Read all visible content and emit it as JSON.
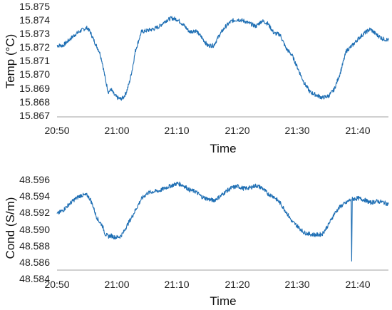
{
  "chart_data": [
    {
      "type": "line",
      "xlabel": "Time",
      "ylabel": "Temp (°C)",
      "x_ticks": [
        "20:50",
        "21:00",
        "21:10",
        "21:20",
        "21:30",
        "21:40"
      ],
      "y_ticks": [
        "15.867",
        "15.868",
        "15.869",
        "15.870",
        "15.871",
        "15.872",
        "15.873",
        "15.874",
        "15.875"
      ],
      "xlim_minutes": [
        0,
        55
      ],
      "ylim": [
        15.867,
        15.875
      ],
      "grid": false,
      "line_color": "#1f6fb4",
      "series": [
        {
          "x": [
            0,
            1,
            2,
            3,
            4,
            5,
            5.5,
            6,
            6.5,
            7,
            7.5,
            8,
            8.5,
            9,
            9.5,
            10,
            10.5,
            11,
            11.5,
            12,
            12.5,
            13,
            14,
            15,
            16,
            17,
            18,
            19,
            20,
            21,
            22,
            23,
            24,
            25,
            26,
            27,
            28,
            29,
            30,
            31,
            32,
            33,
            34,
            35,
            36,
            37,
            38,
            39,
            40,
            41,
            42,
            43,
            44,
            45,
            46,
            47,
            48,
            49,
            50,
            51,
            52,
            53,
            54,
            55
          ],
          "y": [
            15.8722,
            15.8722,
            15.8726,
            15.873,
            15.8733,
            15.8735,
            15.8732,
            15.8727,
            15.8722,
            15.8718,
            15.871,
            15.8698,
            15.8688,
            15.869,
            15.8686,
            15.8684,
            15.8683,
            15.8684,
            15.8688,
            15.8695,
            15.8705,
            15.8718,
            15.8732,
            15.8733,
            15.8734,
            15.8736,
            15.874,
            15.8742,
            15.8741,
            15.8737,
            15.8732,
            15.8733,
            15.8728,
            15.8722,
            15.8722,
            15.873,
            15.8736,
            15.874,
            15.8741,
            15.874,
            15.8738,
            15.8736,
            15.874,
            15.8738,
            15.8731,
            15.873,
            15.872,
            15.8715,
            15.8705,
            15.8695,
            15.8688,
            15.8686,
            15.8684,
            15.8685,
            15.869,
            15.8702,
            15.8718,
            15.8722,
            15.8727,
            15.8731,
            15.8734,
            15.873,
            15.8727,
            15.8726
          ]
        }
      ]
    },
    {
      "type": "line",
      "xlabel": "Time",
      "ylabel": "Cond (S/m)",
      "x_ticks": [
        "20:50",
        "21:00",
        "21:10",
        "21:20",
        "21:30",
        "21:40"
      ],
      "y_ticks": [
        "48.584",
        "48.586",
        "48.588",
        "48.590",
        "48.592",
        "48.594",
        "48.596"
      ],
      "xlim_minutes": [
        0,
        55
      ],
      "ylim": [
        48.584,
        48.596
      ],
      "grid": false,
      "line_color": "#1f6fb4",
      "series": [
        {
          "x": [
            0,
            1,
            2,
            3,
            4,
            5,
            5.5,
            6,
            6.5,
            7,
            7.5,
            8,
            8.5,
            9,
            9.5,
            10,
            10.5,
            11,
            11.5,
            12,
            12.5,
            13,
            14,
            15,
            16,
            17,
            18,
            19,
            20,
            21,
            22,
            23,
            24,
            25,
            26,
            27,
            28,
            29,
            30,
            31,
            32,
            33,
            34,
            35,
            36,
            37,
            38,
            39,
            40,
            41,
            42,
            43,
            44,
            45,
            46,
            47,
            48,
            48.8,
            48.9,
            49,
            50,
            51,
            52,
            53,
            54,
            55
          ],
          "y": [
            48.5915,
            48.592,
            48.5928,
            48.5935,
            48.594,
            48.594,
            48.5935,
            48.5925,
            48.5912,
            48.5905,
            48.59,
            48.5888,
            48.5885,
            48.5886,
            48.5884,
            48.5884,
            48.5885,
            48.589,
            48.5898,
            48.5905,
            48.5912,
            48.592,
            48.5935,
            48.5943,
            48.5945,
            48.5946,
            48.595,
            48.5953,
            48.5956,
            48.5953,
            48.5947,
            48.5945,
            48.5938,
            48.5935,
            48.5933,
            48.5938,
            48.5945,
            48.595,
            48.5952,
            48.5949,
            48.595,
            48.5953,
            48.595,
            48.5942,
            48.5938,
            48.593,
            48.5918,
            48.5905,
            48.5898,
            48.589,
            48.5888,
            48.5887,
            48.5888,
            48.59,
            48.5915,
            48.5925,
            48.593,
            48.5935,
            48.5852,
            48.5935,
            48.5936,
            48.5934,
            48.593,
            48.5932,
            48.5931,
            48.5928
          ]
        }
      ]
    }
  ]
}
